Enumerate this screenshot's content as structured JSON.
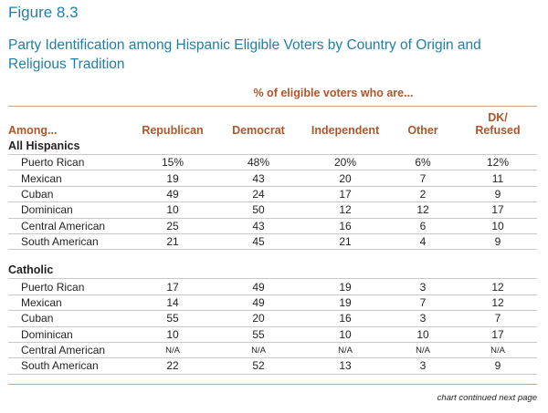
{
  "figure_label": "Figure 8.3",
  "title": "Party Identification among Hispanic Eligible Voters by Country of Origin and Religious Tradition",
  "subheader": "% of eligible voters who are...",
  "columns": {
    "among": "Among...",
    "republican": "Republican",
    "democrat": "Democrat",
    "independent": "Independent",
    "other": "Other",
    "dk": "DK/ Refused"
  },
  "groups": [
    {
      "label": "All Hispanics",
      "rows": [
        {
          "origin": "Puerto Rican",
          "values": [
            "15%",
            "48%",
            "20%",
            "6%",
            "12%"
          ]
        },
        {
          "origin": "Mexican",
          "values": [
            "19",
            "43",
            "20",
            "7",
            "11"
          ]
        },
        {
          "origin": "Cuban",
          "values": [
            "49",
            "24",
            "17",
            "2",
            "9"
          ]
        },
        {
          "origin": "Dominican",
          "values": [
            "10",
            "50",
            "12",
            "12",
            "17"
          ]
        },
        {
          "origin": "Central American",
          "values": [
            "25",
            "43",
            "16",
            "6",
            "10"
          ]
        },
        {
          "origin": "South American",
          "values": [
            "21",
            "45",
            "21",
            "4",
            "9"
          ]
        }
      ]
    },
    {
      "label": "Catholic",
      "rows": [
        {
          "origin": "Puerto Rican",
          "values": [
            "17",
            "49",
            "19",
            "3",
            "12"
          ]
        },
        {
          "origin": "Mexican",
          "values": [
            "14",
            "49",
            "19",
            "7",
            "12"
          ]
        },
        {
          "origin": "Cuban",
          "values": [
            "55",
            "20",
            "16",
            "3",
            "7"
          ]
        },
        {
          "origin": "Dominican",
          "values": [
            "10",
            "55",
            "10",
            "10",
            "17"
          ]
        },
        {
          "origin": "Central American",
          "values": [
            "N/A",
            "N/A",
            "N/A",
            "N/A",
            "N/A"
          ]
        },
        {
          "origin": "South American",
          "values": [
            "22",
            "52",
            "13",
            "3",
            "9"
          ]
        }
      ]
    }
  ],
  "footer_note": "chart continued next page"
}
